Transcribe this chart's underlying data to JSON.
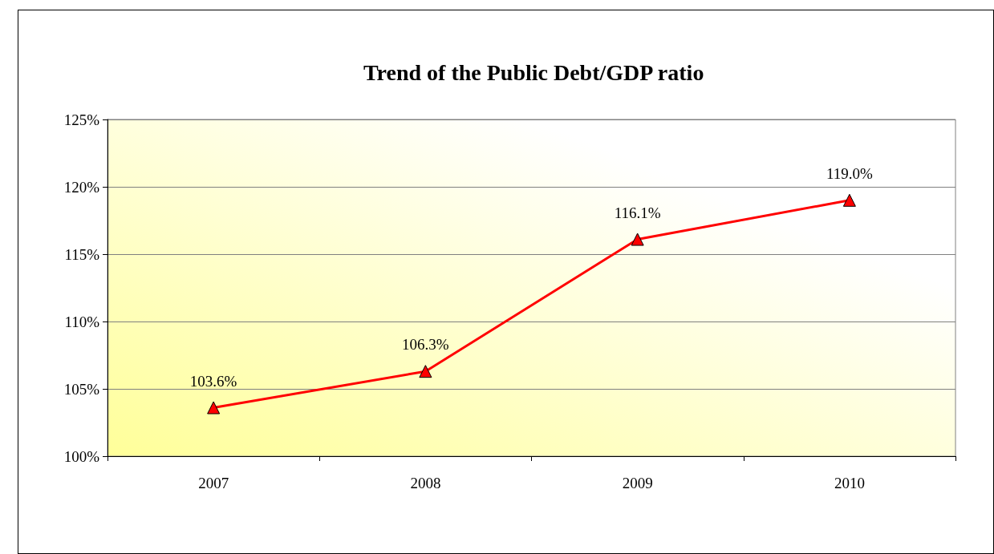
{
  "chart_data": {
    "type": "line",
    "title": "Trend of the Public Debt/GDP ratio",
    "categories": [
      "2007",
      "2008",
      "2009",
      "2010"
    ],
    "series": [
      {
        "color": "#ff0000",
        "values": [
          103.6,
          106.3,
          116.1,
          119.0
        ],
        "value_labels": [
          "103.6%",
          "106.3%",
          "116.1%",
          "119.0%"
        ]
      }
    ],
    "ylim": [
      100,
      125
    ],
    "yticks": [
      {
        "value": 100,
        "label": "100%"
      },
      {
        "value": 105,
        "label": "105%"
      },
      {
        "value": 110,
        "label": "110%"
      },
      {
        "value": 115,
        "label": "115%"
      },
      {
        "value": 120,
        "label": "120%"
      },
      {
        "value": 125,
        "label": "125%"
      }
    ],
    "grid": "y",
    "marker": "triangle",
    "line_style": "solid"
  }
}
